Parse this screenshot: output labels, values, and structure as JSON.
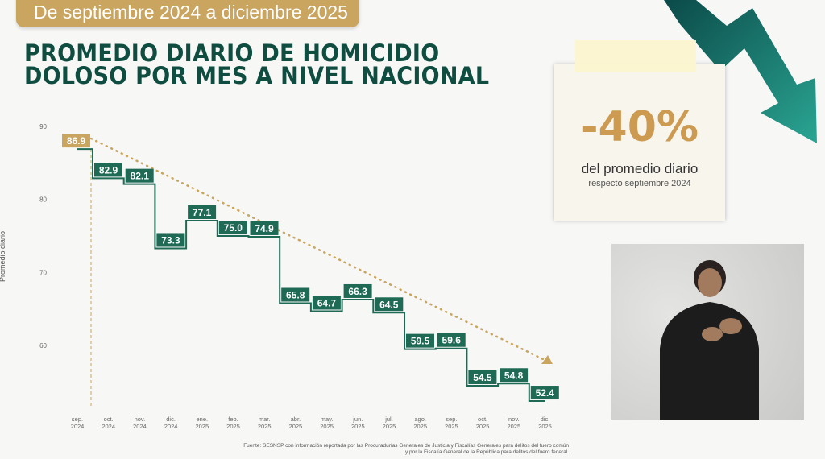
{
  "header": {
    "period": "De septiembre 2024 a diciembre 2025",
    "title_line1": "PROMEDIO DIARIO DE HOMICIDIO",
    "title_line2": "DOLOSO POR MES A NIVEL NACIONAL"
  },
  "callout": {
    "percent": "-40%",
    "line1": "del promedio diario",
    "line2": "respecto septiembre 2024",
    "arrow": "trend-down-arrow-icon"
  },
  "source": {
    "line1": "Fuente: SESNSP con información reportada por las Procuradurías Generales de Justicia y Fiscalías Generales para delitos del fuero común",
    "line2": "y por la Fiscalía General de la República para delitos del fuero federal."
  },
  "colors": {
    "green": "#1e6a55",
    "gold": "#c9a55f",
    "title": "#0f4d40"
  },
  "chart_data": {
    "type": "line",
    "step": true,
    "ylabel": "Promedio diario",
    "ylim": [
      55,
      90
    ],
    "yticks": [
      60,
      70,
      80,
      90
    ],
    "categories": [
      "sep. 2024",
      "oct. 2024",
      "nov. 2024",
      "dic. 2024",
      "ene. 2025",
      "feb. 2025",
      "mar. 2025",
      "abr. 2025",
      "may. 2025",
      "jun. 2025",
      "jul. 2025",
      "ago. 2025",
      "sep. 2025",
      "oct. 2025",
      "nov. 2025",
      "dic. 2025"
    ],
    "values": [
      86.9,
      82.9,
      82.1,
      73.3,
      77.1,
      75.0,
      74.9,
      65.8,
      64.7,
      66.3,
      64.5,
      59.5,
      59.6,
      54.5,
      54.8,
      52.4
    ],
    "labels": [
      "86.9",
      "82.9",
      "82.1",
      "73.3",
      "77.1",
      "75.0",
      "74.9",
      "65.8",
      "64.7",
      "66.3",
      "64.5",
      "59.5",
      "59.6",
      "54.5",
      "54.8",
      "52.4"
    ],
    "trend": "dotted-line-with-arrow",
    "grid": false
  }
}
